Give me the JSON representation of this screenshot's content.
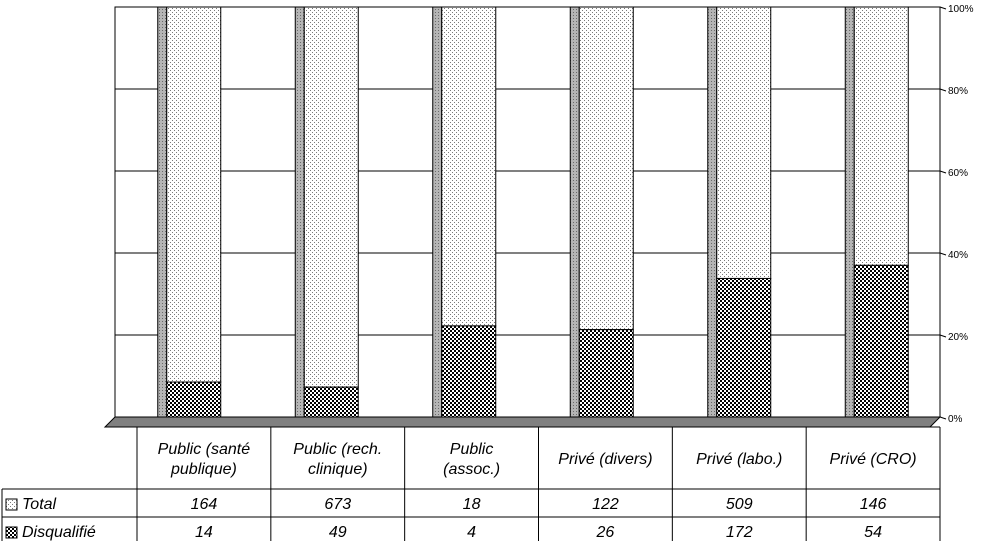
{
  "chart_data": {
    "type": "bar",
    "stacked": "percent",
    "categories": [
      [
        "Public (santé",
        "publique)"
      ],
      [
        "Public (rech.",
        "clinique)"
      ],
      [
        "Public",
        "(assoc.)"
      ],
      [
        "Privé (divers)"
      ],
      [
        "Privé (labo.)"
      ],
      [
        "Privé (CRO)"
      ]
    ],
    "series": [
      {
        "name": "Total",
        "values": [
          164,
          673,
          18,
          122,
          509,
          146
        ],
        "pattern": "dots"
      },
      {
        "name": "Disqualifié",
        "values": [
          14,
          49,
          4,
          26,
          172,
          54
        ],
        "pattern": "checker"
      }
    ],
    "yticks": [
      "0%",
      "20%",
      "40%",
      "60%",
      "80%",
      "100%"
    ],
    "ylim": [
      0,
      100
    ],
    "y_axis_side": "right",
    "grid": true,
    "legend": "data-table",
    "colors": {
      "background": "#ffffff",
      "floor": "#808080",
      "bar_side": "#a6a6a6",
      "gridline": "#000000",
      "pattern_ink": "#000000"
    }
  }
}
